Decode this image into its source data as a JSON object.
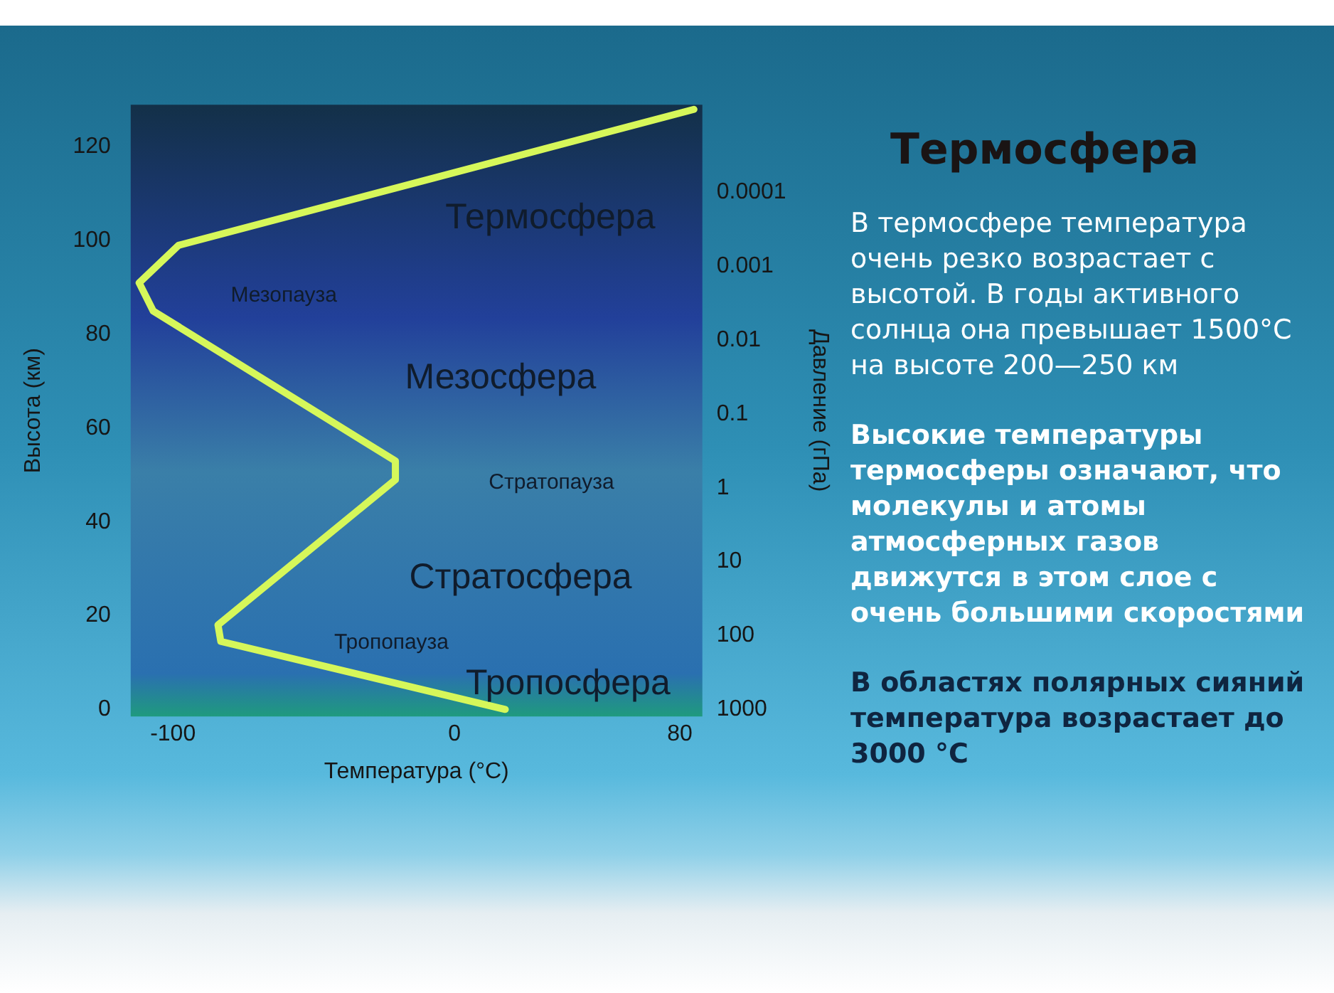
{
  "chart_data": [
    {
      "type": "line",
      "xlabel": "Температура (°C)",
      "ylabel": "Высота (км)",
      "y2label": "Давление (гПа)",
      "x": [
        85,
        -98,
        -112,
        -107,
        -21,
        -21,
        -84,
        -83,
        18
      ],
      "series": [
        {
          "color": "#d6f75a",
          "values": [
            128,
            99,
            91,
            85,
            53,
            49,
            18,
            14.5,
            0
          ]
        }
      ],
      "xlim": [
        -115,
        88
      ],
      "ylim": [
        -1.5,
        129
      ],
      "xticks": [
        -100,
        0,
        80
      ],
      "yticks": [
        0,
        20,
        40,
        60,
        80,
        100,
        120
      ],
      "y2lim": [
        1250,
        6.5e-06
      ],
      "y2ticks": [
        1000,
        100,
        10,
        1,
        0.1,
        0.01,
        0.001,
        0.0001
      ],
      "log": "y2",
      "legend": false,
      "marker": "none",
      "annotations": [
        "Термосфера",
        "Мезопауза",
        "Мезосфера",
        "Стратопауза",
        "Стратосфера",
        "Тропопауза",
        "Тропосфера"
      ]
    },
    {
      "type": "other",
      "title": "Термосфера",
      "annotations": [
        "В термосфере температура очень резко возрастает с высотой. В годы активного солнца она превышает 1500°С на высоте 200—250 км",
        "Высокие температуры термосферы означают, что молекулы и атомы атмосферных газов движутся в этом слое с очень большими скоростями",
        "В областях полярных сияний температура возрастает до 3000 °С"
      ]
    }
  ]
}
